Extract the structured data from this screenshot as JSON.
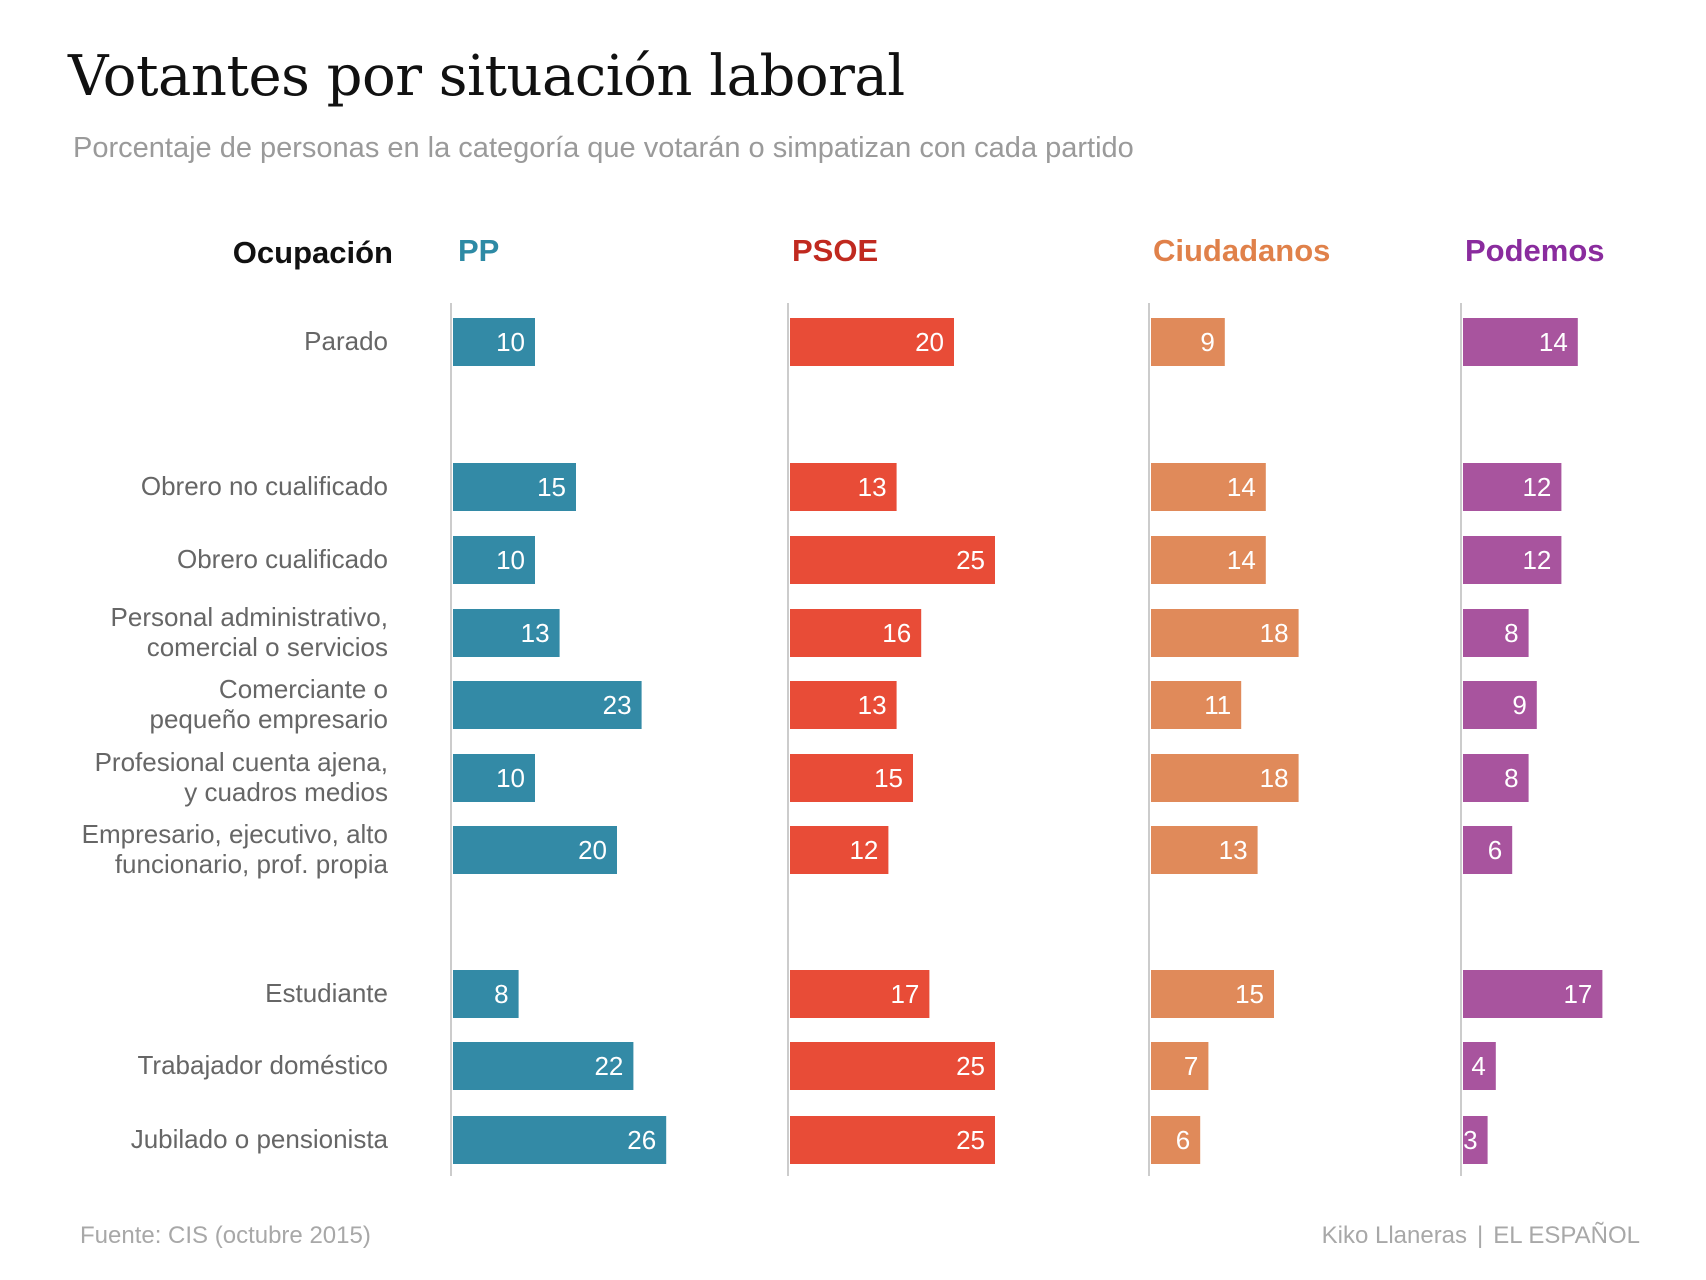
{
  "chart_data": {
    "type": "bar",
    "title": "Votantes por situación laboral",
    "subtitle": "Porcentaje de personas en la categoría que votarán o simpatizan con cada partido",
    "category_header": "Ocupación",
    "categories": [
      [
        "Parado"
      ],
      [
        "Obrero no cualificado"
      ],
      [
        "Obrero cualificado"
      ],
      [
        "Personal administrativo,",
        "comercial o servicios"
      ],
      [
        "Comerciante o",
        "pequeño empresario"
      ],
      [
        "Profesional cuenta ajena,",
        "y cuadros medios"
      ],
      [
        "Empresario, ejecutivo, alto",
        "funcionario, prof. propia"
      ],
      [
        "Estudiante"
      ],
      [
        "Trabajador doméstico"
      ],
      [
        "Jubilado o pensionista"
      ]
    ],
    "series": [
      {
        "name": "PP",
        "color": "#338aa6",
        "values": [
          10,
          15,
          10,
          13,
          23,
          10,
          20,
          8,
          22,
          26
        ]
      },
      {
        "name": "PSOE",
        "color": "#e84c37",
        "values": [
          20,
          13,
          25,
          16,
          13,
          15,
          12,
          17,
          25,
          25
        ]
      },
      {
        "name": "Ciudadanos",
        "color": "#e08a5a",
        "values": [
          9,
          14,
          14,
          18,
          11,
          18,
          13,
          15,
          7,
          6
        ]
      },
      {
        "name": "Podemos",
        "color": "#a8549e",
        "values": [
          14,
          12,
          12,
          8,
          9,
          8,
          6,
          17,
          4,
          3
        ]
      }
    ]
  },
  "colors": {
    "header_text": "#111111",
    "pp": "#2d8aa5",
    "psoe": "#c0291f",
    "ciudadanos": "#e0814a",
    "podemos": "#8a2c9e",
    "axis": "#cccccc"
  },
  "footer": {
    "source": "Fuente: CIS (octubre 2015)",
    "author": "Kiko Llaneras",
    "separator": "|",
    "publisher": "EL ESPAÑOL"
  }
}
